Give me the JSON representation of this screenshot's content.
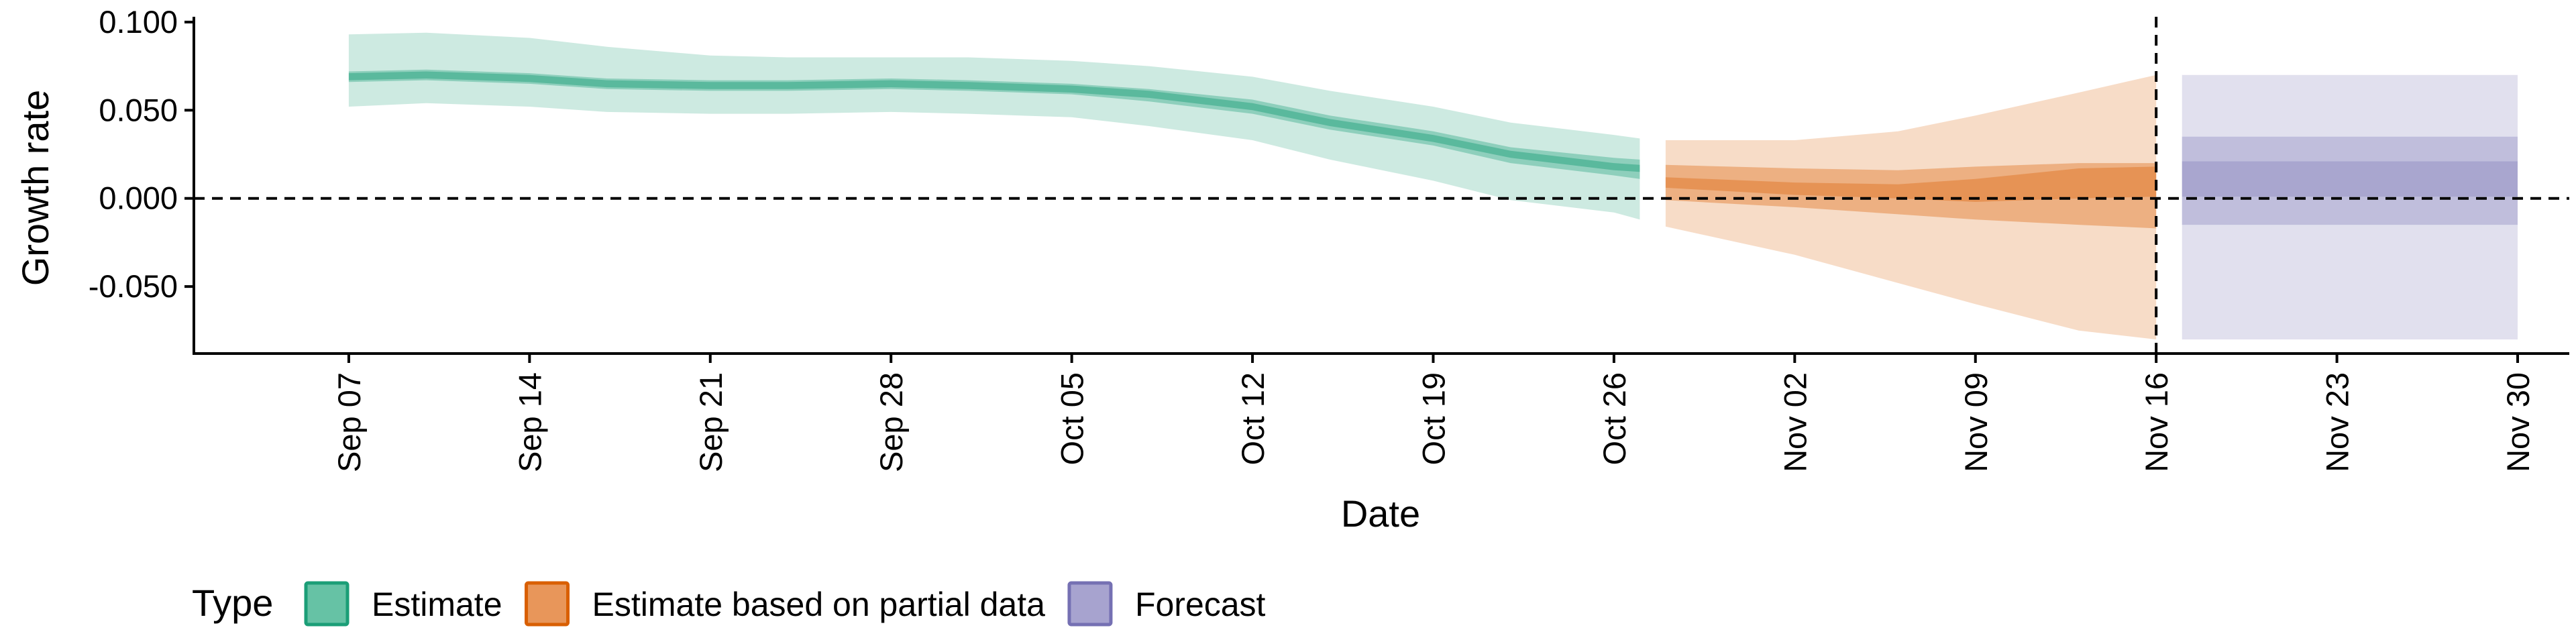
{
  "chart_data": {
    "type": "area",
    "xlabel": "Date",
    "ylabel": "Growth rate",
    "ylim": [
      -0.088,
      0.103
    ],
    "xlim": [
      "2020-09-01",
      "2020-12-02"
    ],
    "x_ticks": [
      "2020-09-07",
      "2020-09-14",
      "2020-09-21",
      "2020-09-28",
      "2020-10-05",
      "2020-10-12",
      "2020-10-19",
      "2020-10-26",
      "2020-11-02",
      "2020-11-09",
      "2020-11-16",
      "2020-11-23",
      "2020-11-30"
    ],
    "x_tick_labels": [
      "Sep 07",
      "Sep 14",
      "Sep 21",
      "Sep 28",
      "Oct 05",
      "Oct 12",
      "Oct 19",
      "Oct 26",
      "Nov 02",
      "Nov 09",
      "Nov 16",
      "Nov 23",
      "Nov 30"
    ],
    "y_ticks": [
      -0.05,
      0,
      0.05,
      0.1
    ],
    "y_tick_labels": [
      "-0.050",
      "0.000",
      "0.050",
      "0.100"
    ],
    "grid": false,
    "reference_lines": [
      {
        "axis": "y",
        "value": 0,
        "style": "dashed"
      },
      {
        "axis": "x",
        "value": "2020-11-16",
        "style": "dashed"
      }
    ],
    "legend": {
      "title": "Type",
      "position": "bottom-left",
      "entries": [
        {
          "label": "Estimate",
          "fill": "#66c2a5",
          "stroke": "#1b9e77"
        },
        {
          "label": "Estimate based on partial data",
          "fill": "#e8965a",
          "stroke": "#d95f02"
        },
        {
          "label": "Forecast",
          "fill": "#a7a3cf",
          "stroke": "#7570b3"
        }
      ]
    },
    "series": [
      {
        "type_label": "Estimate",
        "color": "#1b9e77",
        "x": [
          "2020-09-07",
          "2020-09-10",
          "2020-09-14",
          "2020-09-17",
          "2020-09-21",
          "2020-09-24",
          "2020-09-28",
          "2020-10-01",
          "2020-10-05",
          "2020-10-08",
          "2020-10-12",
          "2020-10-15",
          "2020-10-19",
          "2020-10-22",
          "2020-10-26",
          "2020-10-27"
        ],
        "median": [
          0.069,
          0.07,
          0.068,
          0.065,
          0.064,
          0.064,
          0.065,
          0.064,
          0.062,
          0.059,
          0.052,
          0.043,
          0.034,
          0.025,
          0.018,
          0.017
        ],
        "lower_50": [
          0.066,
          0.067,
          0.065,
          0.062,
          0.061,
          0.061,
          0.062,
          0.061,
          0.059,
          0.055,
          0.048,
          0.039,
          0.03,
          0.02,
          0.013,
          0.011
        ],
        "upper_50": [
          0.072,
          0.073,
          0.071,
          0.068,
          0.067,
          0.067,
          0.068,
          0.067,
          0.065,
          0.062,
          0.056,
          0.047,
          0.038,
          0.029,
          0.023,
          0.022
        ],
        "lower_90": [
          0.052,
          0.054,
          0.052,
          0.049,
          0.048,
          0.048,
          0.049,
          0.048,
          0.046,
          0.041,
          0.033,
          0.022,
          0.01,
          -0.001,
          -0.008,
          -0.012
        ],
        "upper_90": [
          0.093,
          0.094,
          0.091,
          0.086,
          0.081,
          0.08,
          0.08,
          0.08,
          0.078,
          0.075,
          0.069,
          0.061,
          0.052,
          0.043,
          0.036,
          0.034
        ]
      },
      {
        "type_label": "Estimate based on partial data",
        "color": "#d95f02",
        "x": [
          "2020-10-28",
          "2020-11-02",
          "2020-11-06",
          "2020-11-09",
          "2020-11-13",
          "2020-11-16"
        ],
        "lower_50": [
          -0.001,
          -0.005,
          -0.009,
          -0.012,
          -0.015,
          -0.017
        ],
        "upper_50": [
          0.019,
          0.017,
          0.016,
          0.018,
          0.02,
          0.02
        ],
        "lower_90": [
          -0.016,
          -0.032,
          -0.048,
          -0.06,
          -0.075,
          -0.08
        ],
        "upper_90": [
          0.033,
          0.033,
          0.038,
          0.047,
          0.06,
          0.07
        ],
        "inner_lower": [
          0.006,
          0.002,
          0.0,
          -0.002,
          0.0,
          0.001
        ],
        "inner_upper": [
          0.012,
          0.009,
          0.008,
          0.011,
          0.017,
          0.018
        ]
      },
      {
        "type_label": "Forecast",
        "color": "#7570b3",
        "x": [
          "2020-11-17",
          "2020-11-30"
        ],
        "lower_90": [
          -0.08,
          -0.08
        ],
        "upper_90": [
          0.07,
          0.07
        ],
        "lower_50": [
          -0.015,
          -0.015
        ],
        "upper_50": [
          0.035,
          0.035
        ],
        "inner_lower": [
          0.001,
          0.001
        ],
        "inner_upper": [
          0.021,
          0.021
        ]
      }
    ]
  }
}
